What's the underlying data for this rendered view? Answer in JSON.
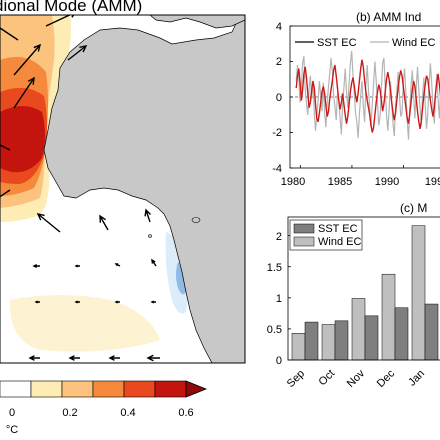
{
  "map": {
    "title": "dional Mode (AMM)",
    "colorbar": {
      "tick_labels": [
        "0",
        "0.2",
        "0.4",
        "0.6"
      ],
      "unit": "°C",
      "colors": [
        "#ffffff",
        "#fdecb4",
        "#fbc37e",
        "#f68a3c",
        "#e8491e",
        "#c4140e",
        "#8c0a0a"
      ]
    },
    "land_color": "#c8c8c8"
  },
  "chart_data": [
    {
      "type": "line",
      "title": "(b) AMM Ind",
      "series": [
        {
          "name": "SST EC",
          "color": "#cc1a1a"
        },
        {
          "name": "Wind EC",
          "color": "#b4b4b4"
        }
      ],
      "x_tick_labels": [
        "1980",
        "1985",
        "1990",
        "199"
      ],
      "y_tick_labels": [
        "4",
        "2",
        "0",
        "-2",
        "-4"
      ],
      "x_range": [
        1979,
        1994.5
      ],
      "ylim": [
        -4,
        4
      ],
      "x_step": 0.125,
      "sst_values": [
        0.5,
        1.2,
        1.6,
        0.8,
        -0.2,
        0.4,
        1.3,
        1.7,
        1.1,
        0.2,
        -0.6,
        -0.3,
        0.4,
        0.9,
        0.5,
        -0.4,
        -1.2,
        -1.4,
        -0.9,
        -0.3,
        0.3,
        0.6,
        0.2,
        -0.5,
        -1.1,
        -0.8,
        -0.1,
        0.4,
        0.9,
        1.5,
        1.8,
        1.2,
        0.5,
        -0.2,
        -0.7,
        -0.3,
        0.2,
        -0.4,
        -1.0,
        -1.5,
        -1.1,
        -0.4,
        0.3,
        0.8,
        1.1,
        0.6,
        0.1,
        -0.3,
        0.2,
        0.9,
        1.6,
        2.1,
        1.7,
        0.9,
        0.3,
        -0.2,
        -0.6,
        -1.0,
        -1.6,
        -2.0,
        -1.7,
        -1.0,
        -0.3,
        0.3,
        0.7,
        0.4,
        -0.2,
        -0.8,
        -0.4,
        0.3,
        1.0,
        1.4,
        1.0,
        0.4,
        -0.3,
        -0.9,
        -1.3,
        -0.9,
        -0.2,
        0.5,
        1.1,
        1.5,
        1.2,
        0.6,
        0.0,
        -0.6,
        -1.2,
        -1.5,
        -1.0,
        -0.3,
        0.4,
        0.9,
        0.6,
        -0.1,
        -0.8,
        -1.4,
        -1.8,
        -1.3,
        -0.6,
        0.1,
        0.7,
        1.2,
        1.0,
        0.4,
        -0.2,
        -0.7,
        -1.1,
        -0.6,
        0.2,
        0.8,
        1.3,
        0.7,
        0.0,
        -0.6,
        -1.0,
        -0.5,
        0.3,
        1.0
      ],
      "wind_values": [
        0.9,
        1.8,
        1.0,
        -0.3,
        0.6,
        1.9,
        2.3,
        0.5,
        -0.4,
        -1.0,
        0.5,
        1.2,
        -0.1,
        0.8,
        -0.9,
        -1.9,
        -1.1,
        -0.2,
        0.9,
        0.1,
        -0.8,
        0.8,
        -0.9,
        -1.7,
        -0.3,
        0.6,
        1.3,
        2.2,
        1.5,
        0.1,
        -0.5,
        -1.3,
        0.2,
        -0.2,
        -1.2,
        -2.1,
        -0.4,
        0.5,
        1.6,
        0.3,
        -0.6,
        0.8,
        1.9,
        2.6,
        1.2,
        0.2,
        -0.9,
        -1.4,
        -2.3,
        -1.0,
        0.1,
        0.9,
        -0.5,
        -1.4,
        0.6,
        1.8,
        0.4,
        -0.6,
        -1.7,
        -0.4,
        0.8,
        2.0,
        0.9,
        -0.4,
        -1.6,
        -1.1,
        0.5,
        1.9,
        2.2,
        0.6,
        -1.0,
        -1.9,
        -0.8,
        0.9,
        -0.3,
        -1.5,
        -2.2,
        -0.5,
        0.3,
        1.4,
        0.2,
        -1.1,
        -0.9,
        0.8,
        1.6,
        0.2,
        -1.3,
        -2.4,
        -0.7,
        0.6,
        1.5,
        0.1,
        -1.2,
        0.4,
        1.7,
        0.5,
        -0.7,
        -1.6,
        0.1,
        1.1,
        -0.4,
        -1.8,
        -0.9,
        0.7,
        1.9,
        0.8,
        -0.6,
        -1.5,
        0.2,
        1.3,
        -0.2,
        -1.2,
        0.6,
        1.8,
        0.4,
        -0.9,
        -1.8,
        0.3,
        1.5,
        2.0
      ]
    },
    {
      "type": "bar",
      "title": "(c) M",
      "categories": [
        "Sep",
        "Oct",
        "Nov",
        "Dec",
        "Jan"
      ],
      "series": [
        {
          "name": "SST EC",
          "color": "#7f7f7f",
          "values": [
            0.61,
            0.63,
            0.71,
            0.84,
            0.9
          ]
        },
        {
          "name": "Wind EC",
          "color": "#bfbfbf",
          "values": [
            0.43,
            0.57,
            0.99,
            1.38,
            2.16
          ]
        }
      ],
      "y_tick_labels": [
        "0",
        "0.5",
        "1",
        "1.5",
        "2"
      ],
      "ylim": [
        0,
        2.3
      ]
    }
  ]
}
